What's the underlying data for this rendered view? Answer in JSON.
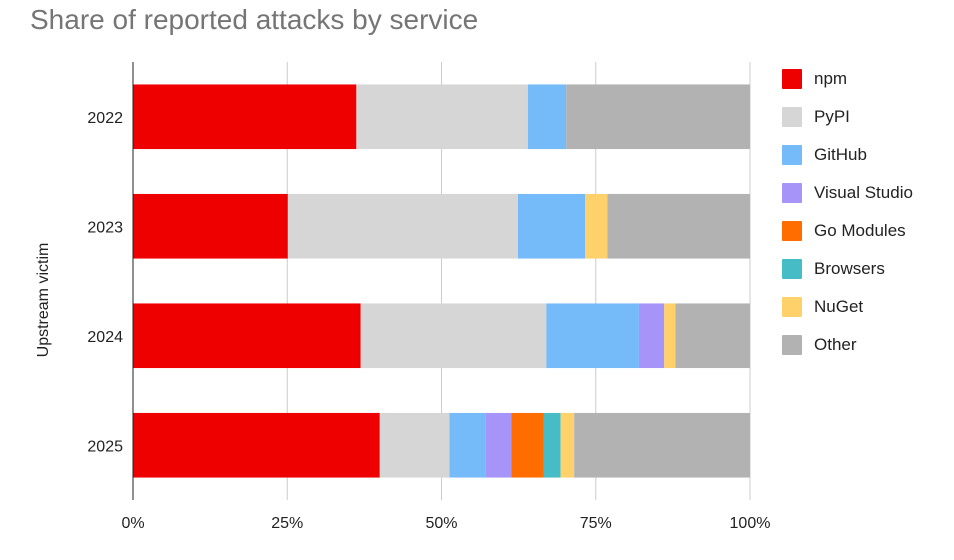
{
  "chart_data": {
    "type": "bar",
    "orientation": "horizontal",
    "stacked": true,
    "title": "Share of reported attacks by service",
    "xlabel": "",
    "ylabel": "Upstream victim",
    "xlim": [
      0,
      100
    ],
    "x_ticks": [
      "0%",
      "25%",
      "50%",
      "75%",
      "100%"
    ],
    "categories": [
      "2022",
      "2023",
      "2024",
      "2025"
    ],
    "series": [
      {
        "name": "npm",
        "color": "#ee0000",
        "values": [
          36.2,
          25.1,
          36.9,
          40.0
        ]
      },
      {
        "name": "PyPI",
        "color": "#d6d6d6",
        "values": [
          27.8,
          37.3,
          30.1,
          11.3
        ]
      },
      {
        "name": "GitHub",
        "color": "#76bbf9",
        "values": [
          6.2,
          10.9,
          15.0,
          5.9
        ]
      },
      {
        "name": "Visual Studio",
        "color": "#a694f8",
        "values": [
          0,
          0,
          4.1,
          4.1
        ]
      },
      {
        "name": "Go Modules",
        "color": "#ff6d00",
        "values": [
          0,
          0,
          0,
          5.3
        ]
      },
      {
        "name": "Browsers",
        "color": "#46bdc6",
        "values": [
          0,
          0,
          0,
          2.7
        ]
      },
      {
        "name": "NuGet",
        "color": "#ffd16b",
        "values": [
          0,
          3.6,
          1.8,
          2.2
        ]
      },
      {
        "name": "Other",
        "color": "#b2b2b2",
        "values": [
          29.8,
          23.1,
          12.1,
          28.5
        ]
      }
    ],
    "grid": true,
    "legend_position": "right"
  }
}
